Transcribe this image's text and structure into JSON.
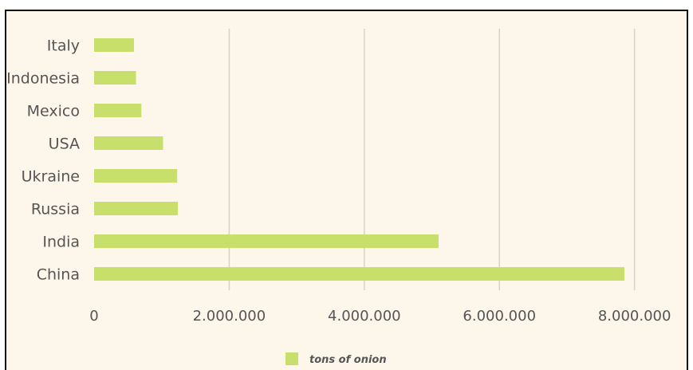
{
  "colors": {
    "background": "#fdf6ea",
    "bar": "#c8e06b",
    "grid": "#d8d3c8",
    "text": "#555555"
  },
  "chart_data": {
    "type": "bar",
    "orientation": "horizontal",
    "categories": [
      "Italy",
      "Indonesia",
      "Mexico",
      "USA",
      "Ukraine",
      "Russia",
      "India",
      "China"
    ],
    "series": [
      {
        "name": "tons of onion",
        "values": [
          590000,
          620000,
          700000,
          1020000,
          1230000,
          1240000,
          5100000,
          7850000
        ]
      }
    ],
    "x_ticks": [
      0,
      2000000,
      4000000,
      6000000,
      8000000
    ],
    "x_tick_labels": [
      "0",
      "2.000.000",
      "4.000.000",
      "6.000.000",
      "8.000.000"
    ],
    "xlim": [
      0,
      8500000
    ],
    "grid": "vertical",
    "legend": {
      "position": "bottom-center",
      "label": "tons of onion"
    }
  }
}
